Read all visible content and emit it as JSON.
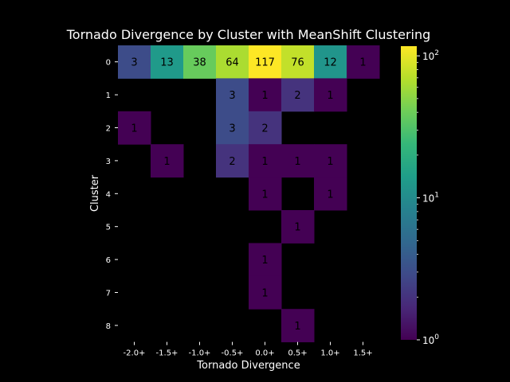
{
  "chart_data": {
    "type": "heatmap",
    "title": "Tornado Divergence by Cluster with MeanShift Clustering",
    "xlabel": "Tornado Divergence",
    "ylabel": "Cluster",
    "x_categories": [
      "-2.0+",
      "-1.5+",
      "-1.0+",
      "-0.5+",
      "0.0+",
      "0.5+",
      "1.0+",
      "1.5+"
    ],
    "y_categories": [
      "0",
      "1",
      "2",
      "3",
      "4",
      "5",
      "6",
      "7",
      "8"
    ],
    "values": [
      [
        3,
        13,
        38,
        64,
        117,
        76,
        12,
        1
      ],
      [
        null,
        null,
        null,
        3,
        1,
        2,
        1,
        null
      ],
      [
        1,
        null,
        null,
        3,
        2,
        null,
        null,
        null
      ],
      [
        null,
        1,
        null,
        2,
        1,
        1,
        1,
        null
      ],
      [
        null,
        null,
        null,
        null,
        1,
        null,
        1,
        null
      ],
      [
        null,
        null,
        null,
        null,
        null,
        1,
        null,
        null
      ],
      [
        null,
        null,
        null,
        null,
        1,
        null,
        null,
        null
      ],
      [
        null,
        null,
        null,
        null,
        1,
        null,
        null,
        null
      ],
      [
        null,
        null,
        null,
        null,
        null,
        1,
        null,
        null
      ]
    ],
    "colorbar": {
      "scale": "log",
      "colormap": "viridis",
      "range": [
        1,
        117
      ],
      "tick_labels": [
        "10^0",
        "10^1",
        "10^2"
      ]
    },
    "background": "#000000"
  }
}
